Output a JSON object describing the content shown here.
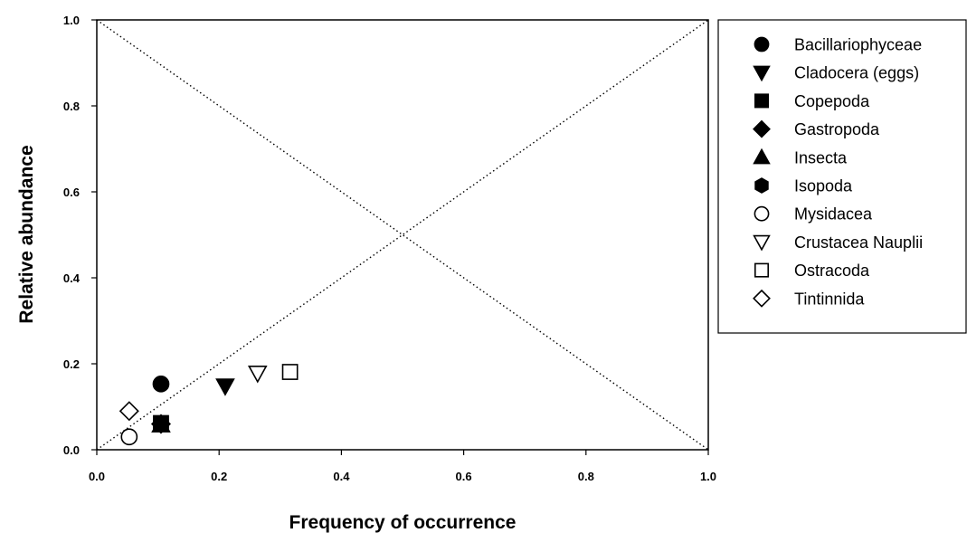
{
  "chart_data": {
    "type": "scatter",
    "xlabel": "Frequency of occurrence",
    "ylabel": "Relative abundance",
    "xlim": [
      0,
      1
    ],
    "ylim": [
      0,
      1
    ],
    "xticks": [
      "0.0",
      "0.2",
      "0.4",
      "0.6",
      "0.8",
      "1.0"
    ],
    "yticks": [
      "0.0",
      "0.2",
      "0.4",
      "0.6",
      "0.8",
      "1.0"
    ],
    "grid": false,
    "legend_position": "right",
    "reference_lines": [
      {
        "from": [
          0,
          0
        ],
        "to": [
          1,
          1
        ],
        "style": "dotted"
      },
      {
        "from": [
          0,
          1
        ],
        "to": [
          1,
          0
        ],
        "style": "dotted"
      }
    ],
    "series": [
      {
        "name": "Bacillariophyceae",
        "marker": "circle",
        "filled": true,
        "x": 0.105,
        "y": 0.153
      },
      {
        "name": "Cladocera (eggs)",
        "marker": "triangle-down",
        "filled": true,
        "x": 0.21,
        "y": 0.148
      },
      {
        "name": "Copepoda",
        "marker": "square",
        "filled": true,
        "x": 0.105,
        "y": 0.062
      },
      {
        "name": "Gastropoda",
        "marker": "diamond",
        "filled": true,
        "x": 0.105,
        "y": 0.06
      },
      {
        "name": "Insecta",
        "marker": "triangle-up",
        "filled": true,
        "x": 0.105,
        "y": 0.058
      },
      {
        "name": "Isopoda",
        "marker": "hexagon",
        "filled": true,
        "x": 0.105,
        "y": 0.061
      },
      {
        "name": "Mysidacea",
        "marker": "circle",
        "filled": false,
        "x": 0.053,
        "y": 0.03
      },
      {
        "name": "Crustacea Nauplii",
        "marker": "triangle-down",
        "filled": false,
        "x": 0.263,
        "y": 0.178
      },
      {
        "name": "Ostracoda",
        "marker": "square",
        "filled": false,
        "x": 0.316,
        "y": 0.181
      },
      {
        "name": "Tintinnida",
        "marker": "diamond",
        "filled": false,
        "x": 0.053,
        "y": 0.09
      }
    ]
  }
}
